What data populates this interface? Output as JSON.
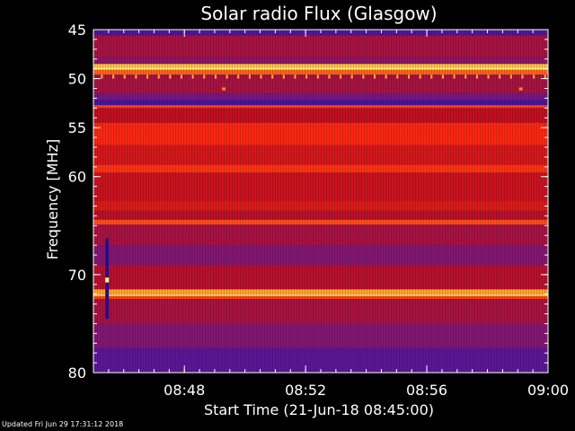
{
  "chart_data": {
    "type": "heatmap",
    "title": "Solar radio Flux (Glasgow)",
    "xlabel": "Start Time (21-Jun-18 08:45:00)",
    "ylabel": "Frequency [MHz]",
    "x_range": [
      "08:45",
      "09:00"
    ],
    "y_range": [
      45,
      80
    ],
    "y_axis_inverted": true,
    "x_ticks": [
      "08:48",
      "08:52",
      "08:56",
      "09:00"
    ],
    "x_tick_minutes": [
      3,
      7,
      11,
      15
    ],
    "y_ticks": [
      45,
      50,
      55,
      60,
      70,
      80
    ],
    "y_tick_values": [
      45,
      50,
      55,
      60,
      70,
      80
    ],
    "bands": [
      {
        "mhz": [
          45.0,
          45.6
        ],
        "level": 0.25
      },
      {
        "mhz": [
          45.6,
          47.8
        ],
        "level": 0.45
      },
      {
        "mhz": [
          47.8,
          48.5
        ],
        "level": 0.4
      },
      {
        "mhz": [
          48.5,
          48.9
        ],
        "level": 0.9
      },
      {
        "mhz": [
          48.9,
          49.1
        ],
        "level": 1.0
      },
      {
        "mhz": [
          49.1,
          49.6
        ],
        "level": 0.75
      },
      {
        "mhz": [
          49.6,
          51.5
        ],
        "level": 0.45
      },
      {
        "mhz": [
          51.5,
          52.2
        ],
        "level": 0.35
      },
      {
        "mhz": [
          52.2,
          52.7
        ],
        "level": 0.22
      },
      {
        "mhz": [
          52.7,
          53.0
        ],
        "level": 0.7
      },
      {
        "mhz": [
          53.0,
          54.5
        ],
        "level": 0.5
      },
      {
        "mhz": [
          54.5,
          56.8
        ],
        "level": 0.65
      },
      {
        "mhz": [
          56.8,
          58.8
        ],
        "level": 0.55
      },
      {
        "mhz": [
          58.8,
          59.6
        ],
        "level": 0.68
      },
      {
        "mhz": [
          59.6,
          62.5
        ],
        "level": 0.52
      },
      {
        "mhz": [
          62.5,
          63.5
        ],
        "level": 0.57
      },
      {
        "mhz": [
          63.5,
          64.4
        ],
        "level": 0.48
      },
      {
        "mhz": [
          64.4,
          64.9
        ],
        "level": 0.72
      },
      {
        "mhz": [
          64.9,
          67.0
        ],
        "level": 0.45
      },
      {
        "mhz": [
          67.0,
          69.0
        ],
        "level": 0.38
      },
      {
        "mhz": [
          69.0,
          71.5
        ],
        "level": 0.48
      },
      {
        "mhz": [
          71.5,
          72.0
        ],
        "level": 0.85
      },
      {
        "mhz": [
          72.0,
          72.2
        ],
        "level": 0.95
      },
      {
        "mhz": [
          72.2,
          72.5
        ],
        "level": 0.7
      },
      {
        "mhz": [
          72.5,
          75.0
        ],
        "level": 0.45
      },
      {
        "mhz": [
          75.0,
          77.5
        ],
        "level": 0.38
      },
      {
        "mhz": [
          77.5,
          80.0
        ],
        "level": 0.28
      }
    ],
    "spikes": [
      {
        "minute": 0.45,
        "mhz": [
          66.3,
          74.5
        ],
        "level": 0.1
      },
      {
        "minute": 0.45,
        "mhz": [
          70.3,
          70.8
        ],
        "level": 1.0
      },
      {
        "minute": 4.3,
        "mhz": [
          50.9,
          51.2
        ],
        "level": 0.8
      },
      {
        "minute": 14.1,
        "mhz": [
          50.9,
          51.2
        ],
        "level": 0.8
      }
    ],
    "colormap": [
      "#1a0050",
      "#3a12a0",
      "#6a1a90",
      "#c01020",
      "#ff2a10",
      "#ff9a20",
      "#ffff80"
    ],
    "grid": false
  },
  "footer": {
    "updated": "Updated Fri Jun 29 17:31:12 2018"
  }
}
